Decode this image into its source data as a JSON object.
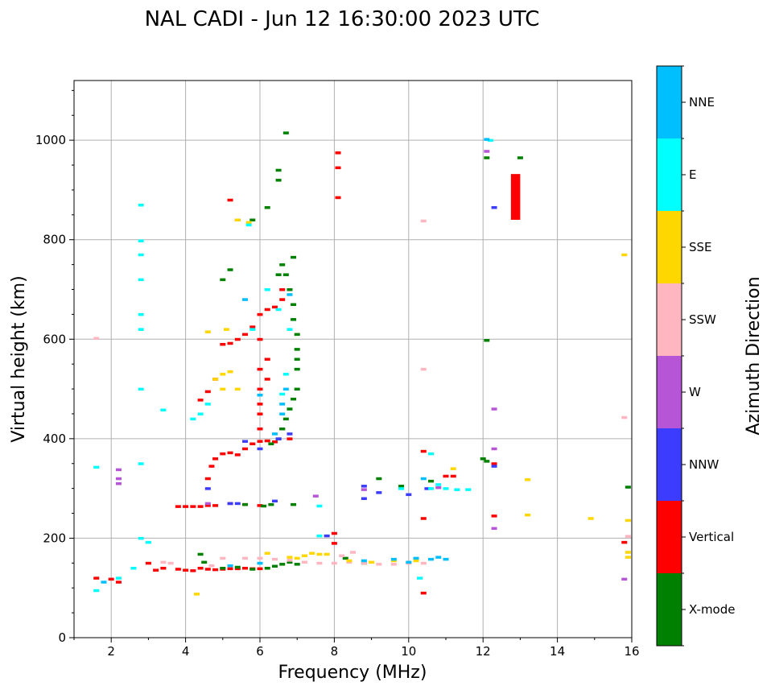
{
  "chart_data": {
    "type": "scatter",
    "title": "NAL CADI - Jun 12 16:30:00 2023 UTC",
    "xlabel": "Frequency (MHz)",
    "ylabel": "Virtual height (km)",
    "xlim": [
      1,
      16
    ],
    "ylim": [
      0,
      1120
    ],
    "xticks": [
      "2",
      "4",
      "6",
      "8",
      "10",
      "12",
      "14",
      "16"
    ],
    "yticks": [
      "0",
      "200",
      "400",
      "600",
      "800",
      "1000"
    ],
    "grid": true,
    "colorbar": {
      "label": "Azimuth Direction",
      "categories": [
        {
          "name": "X-mode",
          "color": "#008000"
        },
        {
          "name": "Vertical",
          "color": "#ff0000"
        },
        {
          "name": "NNW",
          "color": "#3c3cff"
        },
        {
          "name": "W",
          "color": "#b655d6"
        },
        {
          "name": "SSW",
          "color": "#ffb6c1"
        },
        {
          "name": "SSE",
          "color": "#ffd700"
        },
        {
          "name": "E",
          "color": "#00ffff"
        },
        {
          "name": "NNE",
          "color": "#00bfff"
        }
      ]
    },
    "series": [
      {
        "name": "Vertical",
        "points": [
          [
            4.4,
            140
          ],
          [
            4.6,
            138
          ],
          [
            4.8,
            137
          ],
          [
            5.0,
            138
          ],
          [
            5.2,
            139
          ],
          [
            5.4,
            139
          ],
          [
            5.6,
            140
          ],
          [
            5.8,
            139
          ],
          [
            6.0,
            139
          ],
          [
            3.8,
            138
          ],
          [
            4.0,
            136
          ],
          [
            4.2,
            135
          ],
          [
            3.2,
            136
          ],
          [
            3.4,
            140
          ],
          [
            3.0,
            150
          ],
          [
            2.0,
            118
          ],
          [
            2.2,
            112
          ],
          [
            1.6,
            120
          ],
          [
            3.8,
            264
          ],
          [
            4.0,
            264
          ],
          [
            4.2,
            264
          ],
          [
            4.4,
            264
          ],
          [
            4.6,
            266
          ],
          [
            4.8,
            266
          ],
          [
            5.2,
            270
          ],
          [
            5.6,
            268
          ],
          [
            6.0,
            266
          ],
          [
            4.6,
            320
          ],
          [
            4.7,
            345
          ],
          [
            4.8,
            360
          ],
          [
            5.0,
            370
          ],
          [
            5.2,
            372
          ],
          [
            5.4,
            368
          ],
          [
            5.6,
            380
          ],
          [
            5.8,
            390
          ],
          [
            6.0,
            395
          ],
          [
            6.2,
            396
          ],
          [
            6.4,
            394
          ],
          [
            6.6,
            420
          ],
          [
            6.8,
            400
          ],
          [
            4.4,
            478
          ],
          [
            4.6,
            495
          ],
          [
            4.8,
            520
          ],
          [
            5.0,
            590
          ],
          [
            5.2,
            592
          ],
          [
            5.4,
            600
          ],
          [
            5.6,
            610
          ],
          [
            5.8,
            625
          ],
          [
            6.0,
            650
          ],
          [
            6.2,
            660
          ],
          [
            6.4,
            665
          ],
          [
            6.6,
            680
          ],
          [
            6.6,
            700
          ],
          [
            6.0,
            420
          ],
          [
            6.0,
            450
          ],
          [
            6.0,
            470
          ],
          [
            6.0,
            500
          ],
          [
            6.0,
            540
          ],
          [
            6.2,
            520
          ],
          [
            6.2,
            560
          ],
          [
            6.0,
            600
          ],
          [
            12.9,
            885
          ],
          [
            8.1,
            975
          ],
          [
            8.1,
            945
          ],
          [
            8.1,
            885
          ],
          [
            5.2,
            880
          ],
          [
            5.4,
            840
          ],
          [
            10.4,
            375
          ],
          [
            10.4,
            240
          ],
          [
            10.4,
            90
          ],
          [
            12.3,
            350
          ],
          [
            12.3,
            245
          ],
          [
            15.8,
            192
          ],
          [
            8.0,
            210
          ],
          [
            8.0,
            190
          ],
          [
            11.0,
            325
          ],
          [
            11.2,
            325
          ]
        ]
      },
      {
        "name": "X-mode",
        "points": [
          [
            6.3,
            390
          ],
          [
            6.5,
            400
          ],
          [
            6.6,
            420
          ],
          [
            6.7,
            440
          ],
          [
            6.8,
            460
          ],
          [
            6.9,
            480
          ],
          [
            7.0,
            500
          ],
          [
            7.0,
            540
          ],
          [
            7.0,
            560
          ],
          [
            7.0,
            580
          ],
          [
            7.0,
            610
          ],
          [
            6.9,
            640
          ],
          [
            6.9,
            670
          ],
          [
            6.8,
            700
          ],
          [
            6.7,
            730
          ],
          [
            6.9,
            765
          ],
          [
            6.5,
            730
          ],
          [
            6.6,
            750
          ],
          [
            6.5,
            920
          ],
          [
            6.5,
            940
          ],
          [
            6.2,
            865
          ],
          [
            6.7,
            1015
          ],
          [
            5.0,
            720
          ],
          [
            5.2,
            740
          ],
          [
            5.8,
            840
          ],
          [
            5.0,
            140
          ],
          [
            5.4,
            142
          ],
          [
            5.8,
            138
          ],
          [
            6.2,
            140
          ],
          [
            6.4,
            144
          ],
          [
            6.6,
            148
          ],
          [
            6.8,
            152
          ],
          [
            7.0,
            148
          ],
          [
            6.1,
            265
          ],
          [
            6.3,
            268
          ],
          [
            6.9,
            268
          ],
          [
            5.6,
            268
          ],
          [
            8.3,
            160
          ],
          [
            8.8,
            150
          ],
          [
            9.2,
            320
          ],
          [
            9.8,
            305
          ],
          [
            10.6,
            315
          ],
          [
            12.1,
            355
          ],
          [
            12.1,
            965
          ],
          [
            12.1,
            598
          ],
          [
            12.0,
            360
          ],
          [
            13.0,
            965
          ],
          [
            15.9,
            303
          ],
          [
            4.5,
            152
          ],
          [
            4.4,
            168
          ]
        ]
      },
      {
        "name": "NNW",
        "points": [
          [
            6.5,
            400
          ],
          [
            6.8,
            410
          ],
          [
            6.0,
            380
          ],
          [
            5.6,
            395
          ],
          [
            6.4,
            275
          ],
          [
            5.4,
            270
          ],
          [
            5.2,
            270
          ],
          [
            4.6,
            300
          ],
          [
            8.8,
            305
          ],
          [
            8.8,
            280
          ],
          [
            9.2,
            292
          ],
          [
            10.0,
            288
          ],
          [
            10.5,
            300
          ],
          [
            12.3,
            345
          ],
          [
            12.3,
            865
          ],
          [
            7.8,
            205
          ]
        ]
      },
      {
        "name": "W",
        "points": [
          [
            2.2,
            338
          ],
          [
            2.2,
            320
          ],
          [
            2.2,
            310
          ],
          [
            12.3,
            460
          ],
          [
            12.3,
            380
          ],
          [
            12.3,
            220
          ],
          [
            15.8,
            118
          ],
          [
            12.1,
            978
          ],
          [
            7.5,
            285
          ],
          [
            4.6,
            270
          ],
          [
            8.8,
            298
          ],
          [
            10.8,
            302
          ]
        ]
      },
      {
        "name": "SSW",
        "points": [
          [
            5.6,
            160
          ],
          [
            6.0,
            160
          ],
          [
            6.4,
            158
          ],
          [
            6.8,
            156
          ],
          [
            7.2,
            152
          ],
          [
            7.6,
            150
          ],
          [
            8.0,
            150
          ],
          [
            8.4,
            152
          ],
          [
            8.8,
            150
          ],
          [
            9.2,
            148
          ],
          [
            9.6,
            148
          ],
          [
            10.0,
            150
          ],
          [
            10.4,
            150
          ],
          [
            8.5,
            172
          ],
          [
            8.2,
            165
          ],
          [
            10.4,
            838
          ],
          [
            10.4,
            540
          ],
          [
            15.8,
            443
          ],
          [
            15.9,
            204
          ],
          [
            5.0,
            160
          ],
          [
            4.7,
            145
          ],
          [
            3.6,
            150
          ],
          [
            3.4,
            152
          ],
          [
            1.6,
            602
          ]
        ]
      },
      {
        "name": "SSE",
        "points": [
          [
            6.8,
            162
          ],
          [
            7.0,
            160
          ],
          [
            7.2,
            165
          ],
          [
            7.4,
            170
          ],
          [
            7.6,
            168
          ],
          [
            7.8,
            168
          ],
          [
            8.4,
            155
          ],
          [
            9.0,
            152
          ],
          [
            9.6,
            155
          ],
          [
            10.2,
            155
          ],
          [
            5.4,
            840
          ],
          [
            5.0,
            530
          ],
          [
            5.1,
            620
          ],
          [
            5.0,
            500
          ],
          [
            4.6,
            615
          ],
          [
            4.8,
            520
          ],
          [
            5.2,
            535
          ],
          [
            5.4,
            500
          ],
          [
            11.2,
            340
          ],
          [
            13.2,
            318
          ],
          [
            13.2,
            247
          ],
          [
            14.9,
            240
          ],
          [
            15.8,
            770
          ],
          [
            15.9,
            236
          ],
          [
            15.9,
            172
          ],
          [
            15.9,
            162
          ],
          [
            4.3,
            88
          ],
          [
            6.2,
            170
          ],
          [
            5.7,
            835
          ]
        ]
      },
      {
        "name": "E",
        "points": [
          [
            2.8,
            870
          ],
          [
            2.8,
            798
          ],
          [
            2.8,
            770
          ],
          [
            2.8,
            720
          ],
          [
            2.8,
            650
          ],
          [
            2.8,
            620
          ],
          [
            2.8,
            500
          ],
          [
            2.8,
            350
          ],
          [
            1.6,
            343
          ],
          [
            3.4,
            458
          ],
          [
            4.2,
            440
          ],
          [
            4.4,
            450
          ],
          [
            4.6,
            470
          ],
          [
            5.8,
            620
          ],
          [
            6.2,
            700
          ],
          [
            6.5,
            660
          ],
          [
            6.8,
            620
          ],
          [
            6.7,
            530
          ],
          [
            6.6,
            490
          ],
          [
            7.6,
            265
          ],
          [
            7.6,
            205
          ],
          [
            10.6,
            300
          ],
          [
            10.8,
            308
          ],
          [
            11.0,
            300
          ],
          [
            11.3,
            298
          ],
          [
            11.6,
            298
          ],
          [
            9.8,
            300
          ],
          [
            10.3,
            120
          ],
          [
            12.2,
            1000
          ],
          [
            2.8,
            200
          ],
          [
            3.0,
            192
          ],
          [
            2.6,
            140
          ],
          [
            1.6,
            95
          ],
          [
            2.2,
            120
          ],
          [
            5.7,
            830
          ],
          [
            10.6,
            370
          ]
        ]
      },
      {
        "name": "NNE",
        "points": [
          [
            8.8,
            155
          ],
          [
            9.6,
            158
          ],
          [
            10.2,
            160
          ],
          [
            10.6,
            158
          ],
          [
            10.8,
            162
          ],
          [
            11.0,
            158
          ],
          [
            10.0,
            152
          ],
          [
            6.4,
            410
          ],
          [
            6.6,
            450
          ],
          [
            6.6,
            470
          ],
          [
            6.7,
            500
          ],
          [
            6.0,
            488
          ],
          [
            5.6,
            680
          ],
          [
            6.8,
            690
          ],
          [
            10.4,
            320
          ],
          [
            12.1,
            1002
          ],
          [
            1.8,
            112
          ],
          [
            5.2,
            145
          ],
          [
            6.0,
            150
          ]
        ]
      }
    ],
    "bars": [
      {
        "name": "Vertical",
        "x": [
          12.75,
          13.0
        ],
        "y": [
          840,
          932
        ]
      }
    ]
  }
}
